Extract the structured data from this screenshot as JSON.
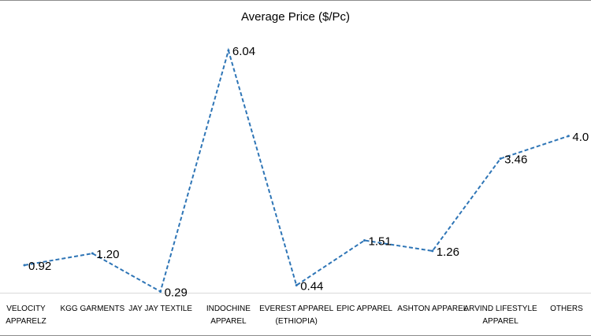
{
  "chart_data": {
    "type": "line",
    "title": "Average Price ($/Pc)",
    "xlabel": "",
    "ylabel": "",
    "ylim": [
      0,
      7
    ],
    "grid": false,
    "legend": "none",
    "categories": [
      "VELOCITY APPARELZ",
      "KGG GARMENTS",
      "JAY JAY TEXTILE",
      "INDOCHINE APPAREL",
      "EVEREST APPAREL (ETHIOPIA)",
      "EPIC APPAREL",
      "ASHTON APPAREL",
      "ARVIND LIFESTYLE APPAREL",
      "OTHERS"
    ],
    "category_label_lines": [
      [
        "VELOCITY",
        "APPARELZ"
      ],
      [
        "KGG GARMENTS"
      ],
      [
        "JAY JAY TEXTILE"
      ],
      [
        "INDOCHINE",
        "APPAREL"
      ],
      [
        "EVEREST APPAREL",
        "(ETHIOPIA)"
      ],
      [
        "EPIC APPAREL"
      ],
      [
        "ASHTON APPAREL"
      ],
      [
        "ARVIND LIFESTYLE",
        "APPAREL"
      ],
      [
        "OTHERS"
      ]
    ],
    "series": [
      {
        "values": [
          0.92,
          1.2,
          0.29,
          6.04,
          0.44,
          1.51,
          1.26,
          3.46,
          4.0
        ],
        "labels": [
          "0.92",
          "1.20",
          "0.29",
          "6.04",
          "0.44",
          "1.51",
          "1.26",
          "3.46",
          "4.0"
        ],
        "color": "#2e75b6",
        "line_style": "dashed"
      }
    ]
  }
}
